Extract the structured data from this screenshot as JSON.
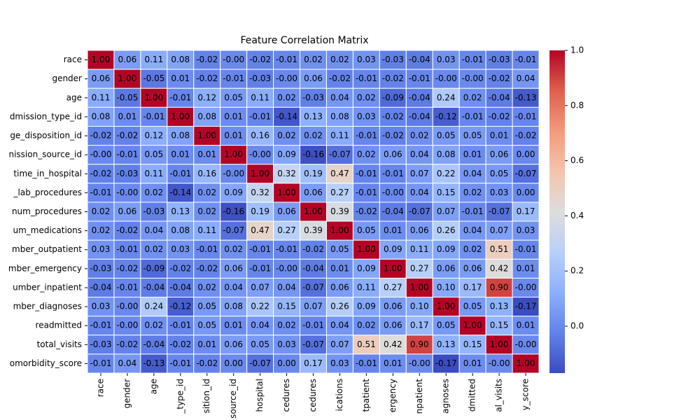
{
  "chart_data": {
    "type": "heatmap",
    "title": "Feature Correlation Matrix",
    "colormap": "coolwarm",
    "row_labels": [
      "race",
      "gender",
      "age",
      "dmission_type_id",
      "ge_disposition_id",
      "nission_source_id",
      "time_in_hospital",
      "_lab_procedures",
      "num_procedures",
      "um_medications",
      "mber_outpatient",
      "mber_emergency",
      "umber_inpatient",
      "mber_diagnoses",
      "readmitted",
      "total_visits",
      "omorbidity_score"
    ],
    "col_labels": [
      "race",
      "gender",
      "age",
      "_type_id",
      "sition_id",
      "source_id",
      "hospital",
      "cedures",
      "cedures",
      "ications",
      "tpatient",
      "ergency",
      "npatient",
      "agnoses",
      "dmitted",
      "al_visits",
      "y_score"
    ],
    "values": [
      [
        1.0,
        0.06,
        0.11,
        0.08,
        -0.02,
        0,
        -0.02,
        -0.01,
        0.02,
        0.02,
        0.03,
        -0.03,
        -0.04,
        0.03,
        -0.01,
        -0.03,
        -0.01
      ],
      [
        0.06,
        1.0,
        -0.05,
        0.01,
        -0.02,
        -0.01,
        -0.03,
        0,
        0.06,
        -0.02,
        -0.01,
        -0.02,
        -0.01,
        0,
        0,
        -0.02,
        0.04
      ],
      [
        0.11,
        -0.05,
        1.0,
        -0.01,
        0.12,
        0.05,
        0.11,
        0.02,
        -0.03,
        0.04,
        0.02,
        -0.09,
        -0.04,
        0.24,
        0.02,
        -0.04,
        -0.13
      ],
      [
        0.08,
        0.01,
        -0.01,
        1.0,
        0.08,
        0.01,
        -0.01,
        -0.14,
        0.13,
        0.08,
        0.03,
        -0.02,
        -0.04,
        -0.12,
        -0.01,
        -0.02,
        -0.01
      ],
      [
        -0.02,
        -0.02,
        0.12,
        0.08,
        1.0,
        0.01,
        0.16,
        0.02,
        0.02,
        0.11,
        -0.01,
        -0.02,
        0.02,
        0.05,
        0.05,
        0.01,
        -0.02
      ],
      [
        0,
        -0.01,
        0.05,
        0.01,
        0.01,
        1.0,
        0,
        0.09,
        -0.16,
        -0.07,
        0.02,
        0.06,
        0.04,
        0.08,
        0.01,
        0.06,
        0.0
      ],
      [
        -0.02,
        -0.03,
        0.11,
        -0.01,
        0.16,
        0,
        1.0,
        0.32,
        0.19,
        0.47,
        -0.01,
        -0.01,
        0.07,
        0.22,
        0.04,
        0.05,
        -0.07
      ],
      [
        -0.01,
        0,
        0.02,
        -0.14,
        0.02,
        0.09,
        0.32,
        1.0,
        0.06,
        0.27,
        -0.01,
        0,
        0.04,
        0.15,
        0.02,
        0.03,
        0.0
      ],
      [
        0.02,
        0.06,
        -0.03,
        0.13,
        0.02,
        -0.16,
        0.19,
        0.06,
        1.0,
        0.39,
        -0.02,
        -0.04,
        -0.07,
        0.07,
        -0.01,
        -0.07,
        0.17
      ],
      [
        0.02,
        -0.02,
        0.04,
        0.08,
        0.11,
        -0.07,
        0.47,
        0.27,
        0.39,
        1.0,
        0.05,
        0.01,
        0.06,
        0.26,
        0.04,
        0.07,
        0.03
      ],
      [
        0.03,
        -0.01,
        0.02,
        0.03,
        -0.01,
        0.02,
        -0.01,
        -0.01,
        -0.02,
        0.05,
        1.0,
        0.09,
        0.11,
        0.09,
        0.02,
        0.51,
        -0.01
      ],
      [
        -0.03,
        -0.02,
        -0.09,
        -0.02,
        -0.02,
        0.06,
        -0.01,
        0,
        -0.04,
        0.01,
        0.09,
        1.0,
        0.27,
        0.06,
        0.06,
        0.42,
        0.01
      ],
      [
        -0.04,
        -0.01,
        -0.04,
        -0.04,
        0.02,
        0.04,
        0.07,
        0.04,
        -0.07,
        0.06,
        0.11,
        0.27,
        1.0,
        0.1,
        0.17,
        0.9,
        0
      ],
      [
        0.03,
        0,
        0.24,
        -0.12,
        0.05,
        0.08,
        0.22,
        0.15,
        0.07,
        0.26,
        0.09,
        0.06,
        0.1,
        1.0,
        0.05,
        0.13,
        -0.17
      ],
      [
        -0.01,
        0,
        0.02,
        -0.01,
        0.05,
        0.01,
        0.04,
        0.02,
        -0.01,
        0.04,
        0.02,
        0.06,
        0.17,
        0.05,
        1.0,
        0.15,
        0.01
      ],
      [
        -0.03,
        -0.02,
        -0.04,
        -0.02,
        0.01,
        0.06,
        0.05,
        0.03,
        -0.07,
        0.07,
        0.51,
        0.42,
        0.9,
        0.13,
        0.15,
        1.0,
        0
      ],
      [
        -0.01,
        0.04,
        -0.13,
        -0.01,
        -0.02,
        0.0,
        -0.07,
        0.0,
        0.17,
        0.03,
        -0.01,
        0.01,
        0,
        -0.17,
        0.01,
        0,
        1.0
      ]
    ],
    "value_labels": [
      [
        "1.00",
        "0.06",
        "0.11",
        "0.08",
        "-0.02",
        "-0.00",
        "-0.02",
        "-0.01",
        "0.02",
        "0.02",
        "0.03",
        "-0.03",
        "-0.04",
        "0.03",
        "-0.01",
        "-0.03",
        "-0.01"
      ],
      [
        "0.06",
        "1.00",
        "-0.05",
        "0.01",
        "-0.02",
        "-0.01",
        "-0.03",
        "-0.00",
        "0.06",
        "-0.02",
        "-0.01",
        "-0.02",
        "-0.01",
        "-0.00",
        "-0.00",
        "-0.02",
        "0.04"
      ],
      [
        "0.11",
        "-0.05",
        "1.00",
        "-0.01",
        "0.12",
        "0.05",
        "0.11",
        "0.02",
        "-0.03",
        "0.04",
        "0.02",
        "-0.09",
        "-0.04",
        "0.24",
        "0.02",
        "-0.04",
        "-0.13"
      ],
      [
        "0.08",
        "0.01",
        "-0.01",
        "1.00",
        "0.08",
        "0.01",
        "-0.01",
        "-0.14",
        "0.13",
        "0.08",
        "0.03",
        "-0.02",
        "-0.04",
        "-0.12",
        "-0.01",
        "-0.02",
        "-0.01"
      ],
      [
        "-0.02",
        "-0.02",
        "0.12",
        "0.08",
        "1.00",
        "0.01",
        "0.16",
        "0.02",
        "0.02",
        "0.11",
        "-0.01",
        "-0.02",
        "0.02",
        "0.05",
        "0.05",
        "0.01",
        "-0.02"
      ],
      [
        "-0.00",
        "-0.01",
        "0.05",
        "0.01",
        "0.01",
        "1.00",
        "-0.00",
        "0.09",
        "-0.16",
        "-0.07",
        "0.02",
        "0.06",
        "0.04",
        "0.08",
        "0.01",
        "0.06",
        "0.00"
      ],
      [
        "-0.02",
        "-0.03",
        "0.11",
        "-0.01",
        "0.16",
        "-0.00",
        "1.00",
        "0.32",
        "0.19",
        "0.47",
        "-0.01",
        "-0.01",
        "0.07",
        "0.22",
        "0.04",
        "0.05",
        "-0.07"
      ],
      [
        "-0.01",
        "-0.00",
        "0.02",
        "-0.14",
        "0.02",
        "0.09",
        "0.32",
        "1.00",
        "0.06",
        "0.27",
        "-0.01",
        "-0.00",
        "0.04",
        "0.15",
        "0.02",
        "0.03",
        "0.00"
      ],
      [
        "0.02",
        "0.06",
        "-0.03",
        "0.13",
        "0.02",
        "-0.16",
        "0.19",
        "0.06",
        "1.00",
        "0.39",
        "-0.02",
        "-0.04",
        "-0.07",
        "0.07",
        "-0.01",
        "-0.07",
        "0.17"
      ],
      [
        "0.02",
        "-0.02",
        "0.04",
        "0.08",
        "0.11",
        "-0.07",
        "0.47",
        "0.27",
        "0.39",
        "1.00",
        "0.05",
        "0.01",
        "0.06",
        "0.26",
        "0.04",
        "0.07",
        "0.03"
      ],
      [
        "0.03",
        "-0.01",
        "0.02",
        "0.03",
        "-0.01",
        "0.02",
        "-0.01",
        "-0.01",
        "-0.02",
        "0.05",
        "1.00",
        "0.09",
        "0.11",
        "0.09",
        "0.02",
        "0.51",
        "-0.01"
      ],
      [
        "-0.03",
        "-0.02",
        "-0.09",
        "-0.02",
        "-0.02",
        "0.06",
        "-0.01",
        "-0.00",
        "-0.04",
        "0.01",
        "0.09",
        "1.00",
        "0.27",
        "0.06",
        "0.06",
        "0.42",
        "0.01"
      ],
      [
        "-0.04",
        "-0.01",
        "-0.04",
        "-0.04",
        "0.02",
        "0.04",
        "0.07",
        "0.04",
        "-0.07",
        "0.06",
        "0.11",
        "0.27",
        "1.00",
        "0.10",
        "0.17",
        "0.90",
        "-0.00"
      ],
      [
        "0.03",
        "-0.00",
        "0.24",
        "-0.12",
        "0.05",
        "0.08",
        "0.22",
        "0.15",
        "0.07",
        "0.26",
        "0.09",
        "0.06",
        "0.10",
        "1.00",
        "0.05",
        "0.13",
        "-0.17"
      ],
      [
        "-0.01",
        "-0.00",
        "0.02",
        "-0.01",
        "0.05",
        "0.01",
        "0.04",
        "0.02",
        "-0.01",
        "0.04",
        "0.02",
        "0.06",
        "0.17",
        "0.05",
        "1.00",
        "0.15",
        "0.01"
      ],
      [
        "-0.03",
        "-0.02",
        "-0.04",
        "-0.02",
        "0.01",
        "0.06",
        "0.05",
        "0.03",
        "-0.07",
        "0.07",
        "0.51",
        "0.42",
        "0.90",
        "0.13",
        "0.15",
        "1.00",
        "-0.00"
      ],
      [
        "-0.01",
        "0.04",
        "-0.13",
        "-0.01",
        "-0.02",
        "0.00",
        "-0.07",
        "0.00",
        "0.17",
        "0.03",
        "-0.01",
        "0.01",
        "-0.00",
        "-0.17",
        "0.01",
        "-0.00",
        "1.00"
      ]
    ],
    "clim": [
      -0.17,
      1.0
    ],
    "cticks": [
      {
        "value": 0,
        "label": "0.0"
      },
      {
        "value": 0.2,
        "label": "0.2"
      },
      {
        "value": 0.4,
        "label": "0.4"
      },
      {
        "value": 0.6,
        "label": "0.6"
      },
      {
        "value": 0.8,
        "label": "0.8"
      },
      {
        "value": 1,
        "label": "1.0"
      }
    ]
  }
}
